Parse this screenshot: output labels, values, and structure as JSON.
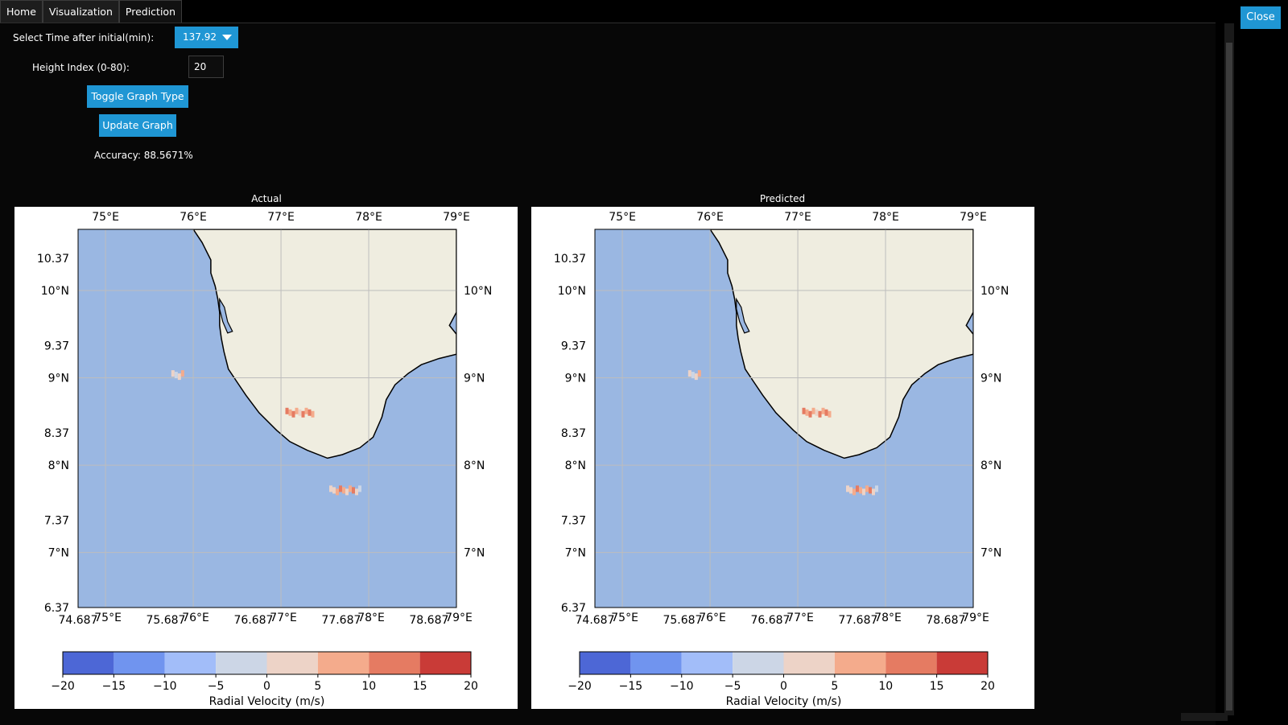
{
  "tabs": [
    {
      "label": "Home"
    },
    {
      "label": "Visualization"
    },
    {
      "label": "Prediction"
    }
  ],
  "close_label": "Close",
  "controls": {
    "time_label": "Select Time after initial(min):",
    "time_value": "137.92",
    "height_label": "Height Index (0-80):",
    "height_value": "20",
    "toggle_label": "Toggle Graph Type",
    "update_label": "Update Graph",
    "accuracy_text": "Accuracy: 88.5671%"
  },
  "colors": {
    "accent": "#1f96d4",
    "ocean": "#9ab7e2",
    "land": "#efede0"
  },
  "chart_data": [
    {
      "type": "heatmap",
      "title": "Actual",
      "lon_ticks": [
        "75°E",
        "76°E",
        "77°E",
        "78°E",
        "79°E"
      ],
      "lat_ticks": [
        "10°N",
        "9°N",
        "8°N",
        "7°N"
      ],
      "bottom_numeric_ticks": [
        "74.687",
        "75.687",
        "76.687",
        "77.687",
        "78.687"
      ],
      "left_numeric_ticks": [
        "10.37",
        "9.37",
        "8.37",
        "7.37",
        "6.37"
      ],
      "colorbar": {
        "label": "Radial Velocity (m/s)",
        "ticks": [
          "−20",
          "−15",
          "−10",
          "−5",
          "0",
          "5",
          "10",
          "15",
          "20"
        ],
        "colors": [
          "#4d67d6",
          "#7094ef",
          "#a2bdf9",
          "#ccd6e6",
          "#edd3c7",
          "#f4ab8c",
          "#e57b62",
          "#c93b37"
        ]
      }
    },
    {
      "type": "heatmap",
      "title": "Predicted",
      "lon_ticks": [
        "75°E",
        "76°E",
        "77°E",
        "78°E",
        "79°E"
      ],
      "lat_ticks": [
        "10°N",
        "9°N",
        "8°N",
        "7°N"
      ],
      "bottom_numeric_ticks": [
        "74.687",
        "75.687",
        "76.687",
        "77.687",
        "78.687"
      ],
      "left_numeric_ticks": [
        "10.37",
        "9.37",
        "8.37",
        "7.37",
        "6.37"
      ],
      "colorbar": {
        "label": "Radial Velocity (m/s)",
        "ticks": [
          "−20",
          "−15",
          "−10",
          "−5",
          "0",
          "5",
          "10",
          "15",
          "20"
        ],
        "colors": [
          "#4d67d6",
          "#7094ef",
          "#a2bdf9",
          "#ccd6e6",
          "#edd3c7",
          "#f4ab8c",
          "#e57b62",
          "#c93b37"
        ]
      }
    }
  ]
}
